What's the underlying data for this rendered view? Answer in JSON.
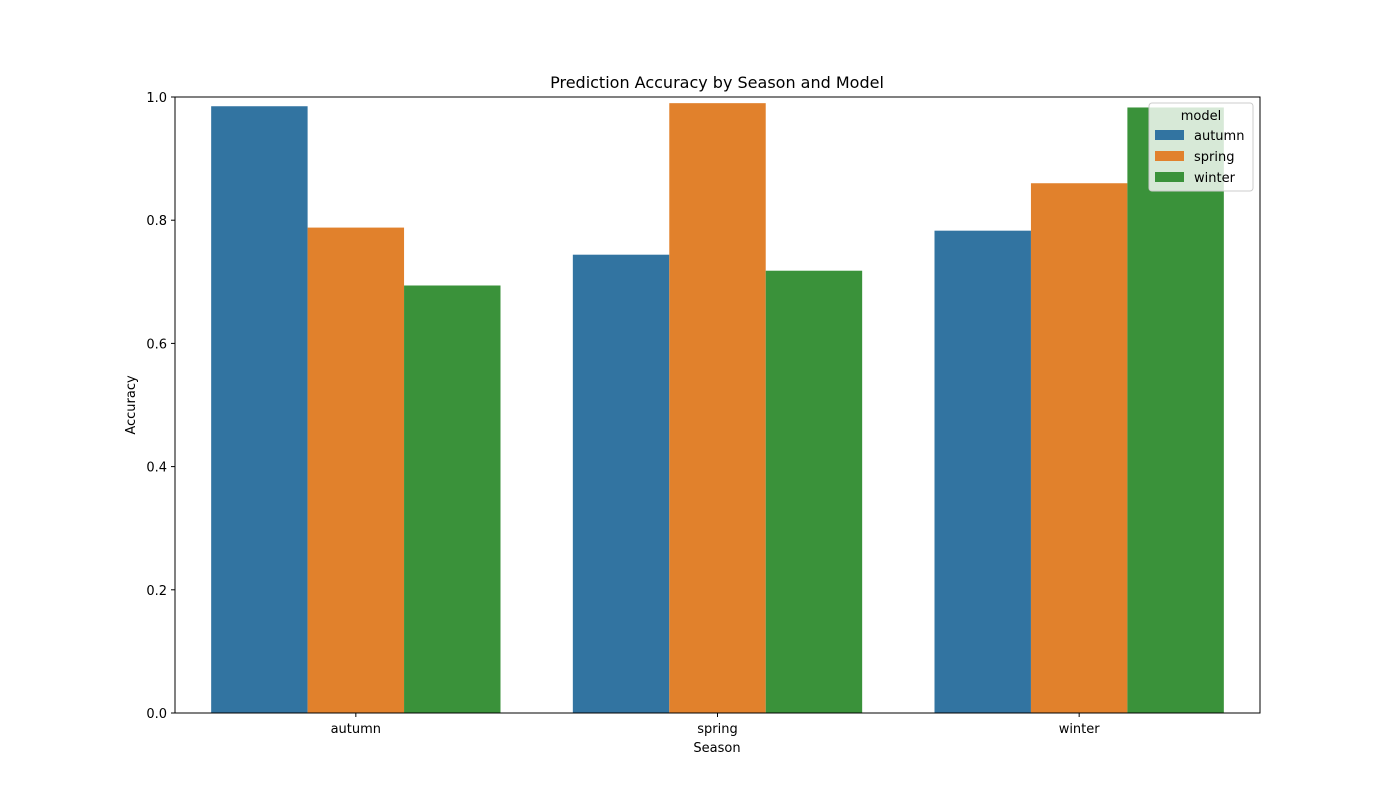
{
  "chart_data": {
    "type": "bar",
    "title": "Prediction Accuracy by Season and Model",
    "xlabel": "Season",
    "ylabel": "Accuracy",
    "categories": [
      "autumn",
      "spring",
      "winter"
    ],
    "series": [
      {
        "name": "autumn",
        "color": "#3274a1",
        "values": [
          0.985,
          0.744,
          0.783
        ]
      },
      {
        "name": "spring",
        "color": "#e1812c",
        "values": [
          0.788,
          0.99,
          0.86
        ]
      },
      {
        "name": "winter",
        "color": "#3a923a",
        "values": [
          0.694,
          0.718,
          0.983
        ]
      }
    ],
    "ylim": [
      0,
      1.0
    ],
    "yticks": [
      "0.0",
      "0.2",
      "0.4",
      "0.6",
      "0.8",
      "1.0"
    ],
    "grid": false,
    "legend": {
      "title": "model",
      "placement": "top-right"
    }
  }
}
